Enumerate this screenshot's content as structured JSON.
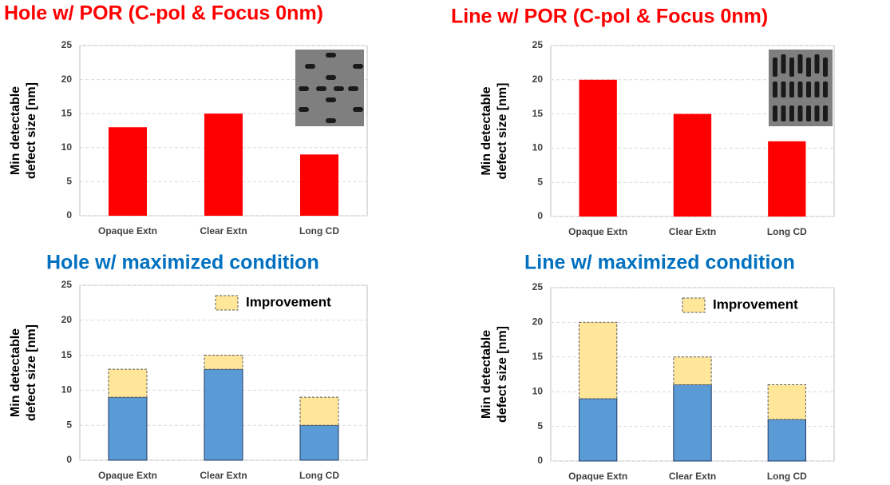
{
  "chart_data": [
    {
      "type": "bar",
      "title": "Hole w/ POR (C-pol & Focus 0nm)",
      "title_color": "#ff0000",
      "ylabel": [
        "Min detectable",
        "defect size [nm]"
      ],
      "categories": [
        "Opaque Extn",
        "Clear Extn",
        "Long CD"
      ],
      "values": [
        13,
        15,
        9
      ],
      "color": "#ff0000",
      "ylim": [
        0,
        25
      ],
      "yticks": [
        0,
        5,
        10,
        15,
        20,
        25
      ],
      "grid": true
    },
    {
      "type": "bar",
      "title": "Line w/ POR (C-pol & Focus 0nm)",
      "title_color": "#ff0000",
      "ylabel": [
        "Min detectable",
        "defect size [nm]"
      ],
      "categories": [
        "Opaque Extn",
        "Clear Extn",
        "Long CD"
      ],
      "values": [
        20,
        15,
        11
      ],
      "color": "#ff0000",
      "ylim": [
        0,
        25
      ],
      "yticks": [
        0,
        5,
        10,
        15,
        20,
        25
      ],
      "grid": true
    },
    {
      "type": "stacked_bar",
      "title": "Hole w/ maximized condition",
      "title_color": "#0070c0",
      "ylabel": [
        "Min detectable",
        "defect size [nm]"
      ],
      "categories": [
        "Opaque Extn",
        "Clear Extn",
        "Long CD"
      ],
      "series": [
        {
          "color": "#5b9bd5",
          "values": [
            9,
            13,
            5
          ]
        },
        {
          "name": "Improvement",
          "color": "#ffe699",
          "values": [
            4,
            2,
            4
          ]
        }
      ],
      "legend": "upper right",
      "ylim": [
        0,
        25
      ],
      "yticks": [
        0,
        5,
        10,
        15,
        20,
        25
      ],
      "grid": true
    },
    {
      "type": "stacked_bar",
      "title": "Line w/ maximized condition",
      "title_color": "#0070c0",
      "ylabel": [
        "Min detectable",
        "defect size [nm]"
      ],
      "categories": [
        "Opaque Extn",
        "Clear Extn",
        "Long CD"
      ],
      "series": [
        {
          "color": "#5b9bd5",
          "values": [
            9,
            11,
            6
          ]
        },
        {
          "name": "Improvement",
          "color": "#ffe699",
          "values": [
            11,
            4,
            5
          ]
        }
      ],
      "legend": "upper right",
      "ylim": [
        0,
        25
      ],
      "yticks": [
        0,
        5,
        10,
        15,
        20,
        25
      ],
      "grid": true
    }
  ]
}
